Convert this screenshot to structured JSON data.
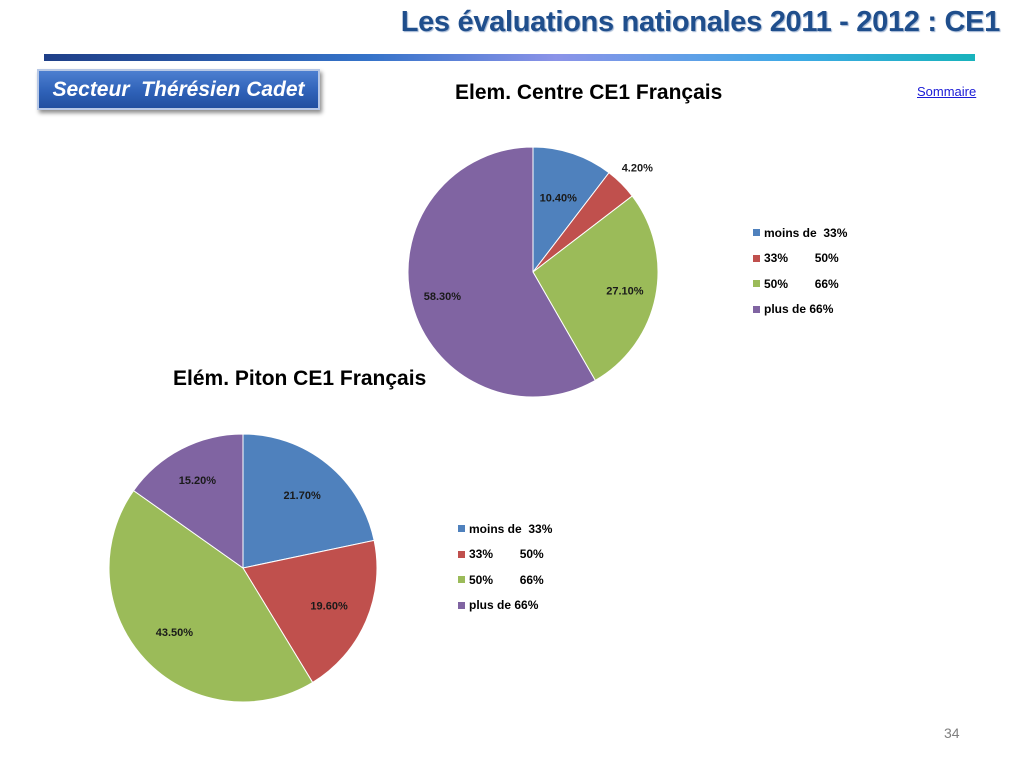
{
  "slide": {
    "title": "Les évaluations nationales 2011 -  2012 : CE1",
    "sector_label": "Secteur  Thérésien Cadet",
    "summary_link": "Sommaire",
    "page_number": "34"
  },
  "colors": {
    "title": "#1f4e8c",
    "sector_box": "#2f62b8",
    "link": "#1a1ad6",
    "series": [
      "#4f81bd",
      "#c0504d",
      "#9bbb59",
      "#8064a2"
    ]
  },
  "chart_data": [
    {
      "type": "pie",
      "title": "Elem. Centre CE1 Français",
      "categories": [
        "moins de  33%",
        "33%        50%",
        "50%        66%",
        "plus de 66%"
      ],
      "values": [
        10.4,
        4.2,
        27.1,
        58.3
      ],
      "value_labels": [
        "10.40%",
        "4.20%",
        "27.10%",
        "58.30%"
      ],
      "legend_position": "right"
    },
    {
      "type": "pie",
      "title": "Elém. Piton CE1 Français",
      "categories": [
        "moins de  33%",
        "33%        50%",
        "50%        66%",
        "plus de 66%"
      ],
      "values": [
        21.7,
        19.6,
        43.5,
        15.2
      ],
      "value_labels": [
        "21.70%",
        "19.60%",
        "43.50%",
        "15.20%"
      ],
      "legend_position": "right"
    }
  ]
}
